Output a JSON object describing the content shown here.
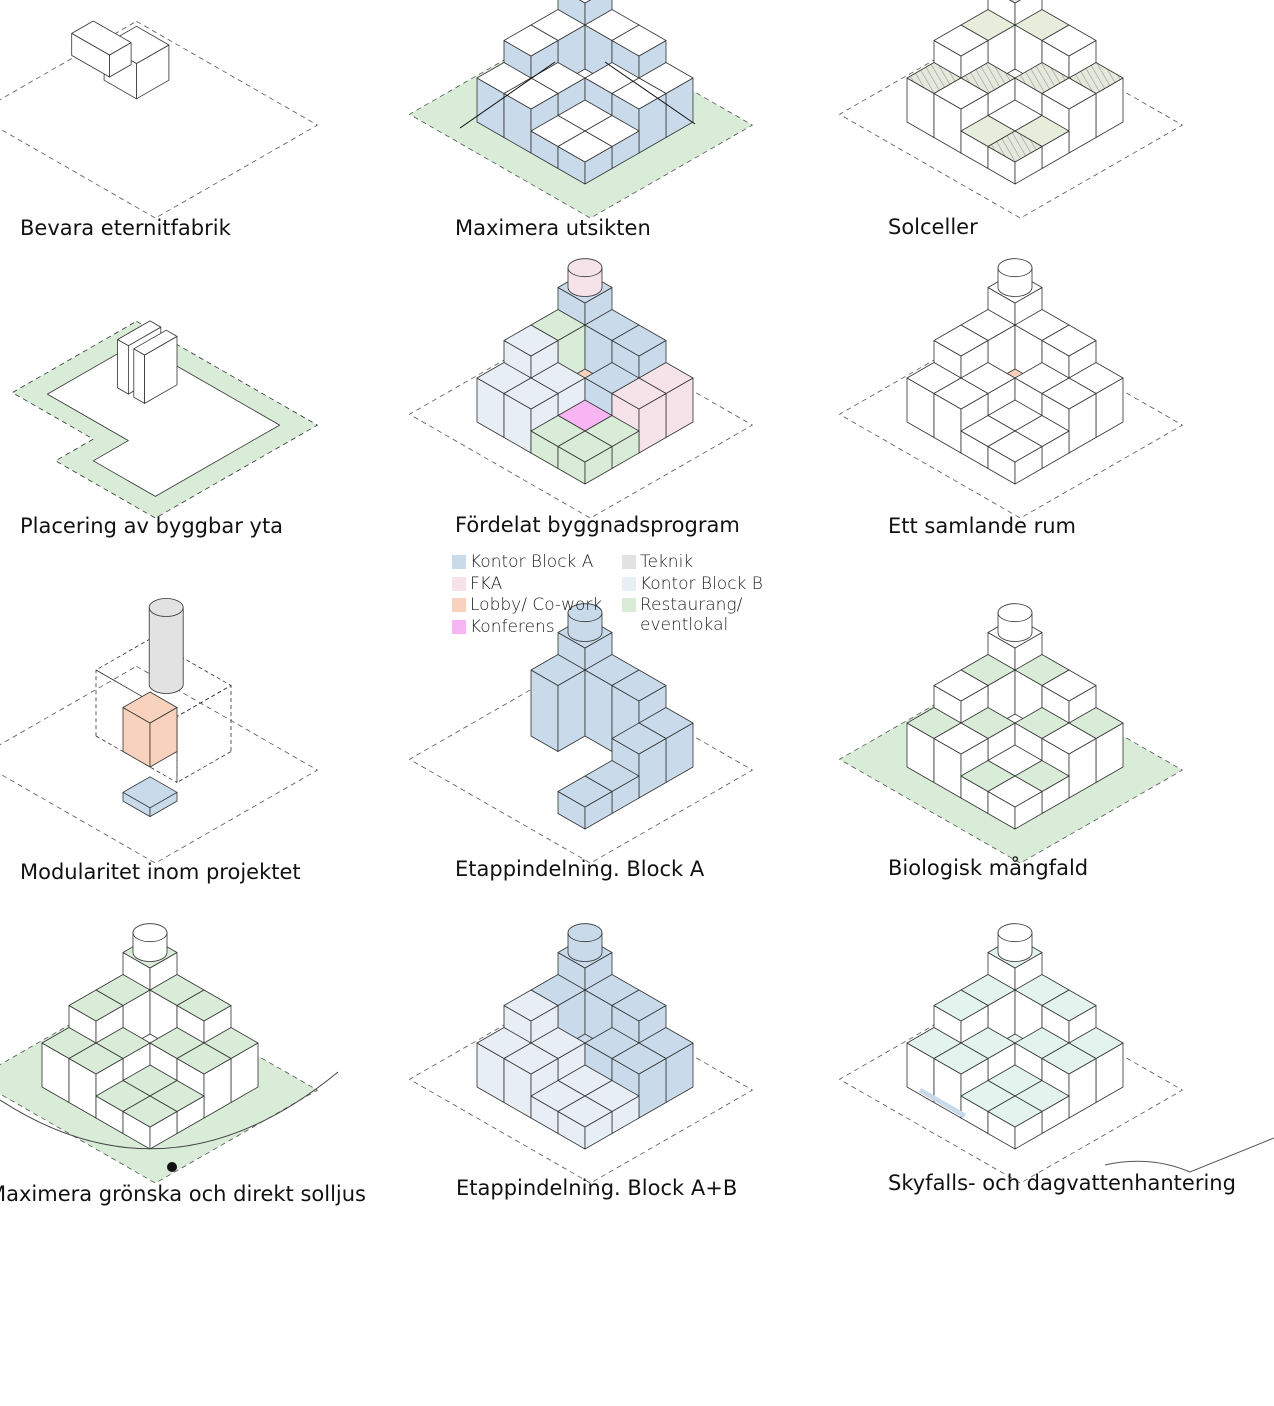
{
  "panels": [
    {
      "caption": "Bevara eternitfabrik"
    },
    {
      "caption": "Maximera utsikten"
    },
    {
      "caption": "Solceller"
    },
    {
      "caption": "Placering av byggbar yta"
    },
    {
      "caption": "Fördelat byggnadsprogram"
    },
    {
      "caption": "Ett samlande rum"
    },
    {
      "caption": "Modularitet inom projektet"
    },
    {
      "caption": "Etappindelning. Block A"
    },
    {
      "caption": "Biologisk mångfald"
    },
    {
      "caption": "Maximera grönska och direkt solljus"
    },
    {
      "caption": "Etappindelning. Block A+B"
    },
    {
      "caption": "Skyfalls- och dagvattenhantering"
    }
  ],
  "legend": {
    "items": [
      {
        "label": "Kontor Block A",
        "color": "#c9dbea"
      },
      {
        "label": "FKA",
        "color": "#f6e3ea"
      },
      {
        "label": "Lobby/ Co-work",
        "color": "#f8d2bc"
      },
      {
        "label": "Konferens",
        "color": "#f7b5f3"
      },
      {
        "label": "Teknik",
        "color": "#e2e2e2"
      },
      {
        "label": "Kontor Block B",
        "color": "#e7eef5"
      },
      {
        "label": "Restaurang/ eventlokal",
        "color": "#d9ecd8"
      }
    ]
  }
}
